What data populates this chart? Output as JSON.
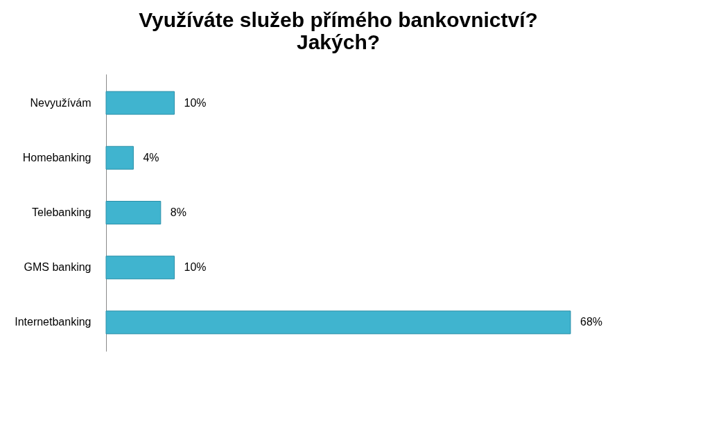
{
  "chart_data": {
    "type": "bar",
    "orientation": "horizontal",
    "title": "Využíváte služeb přímého bankovnictví?\nJakých?",
    "categories": [
      "Nevyužívám",
      "Homebanking",
      "Telebanking",
      "GMS banking",
      "Internetbanking"
    ],
    "values": [
      10,
      4,
      8,
      10,
      68
    ],
    "value_labels": [
      "10%",
      "4%",
      "8%",
      "10%",
      "68%"
    ],
    "color": "#40b4cf"
  }
}
